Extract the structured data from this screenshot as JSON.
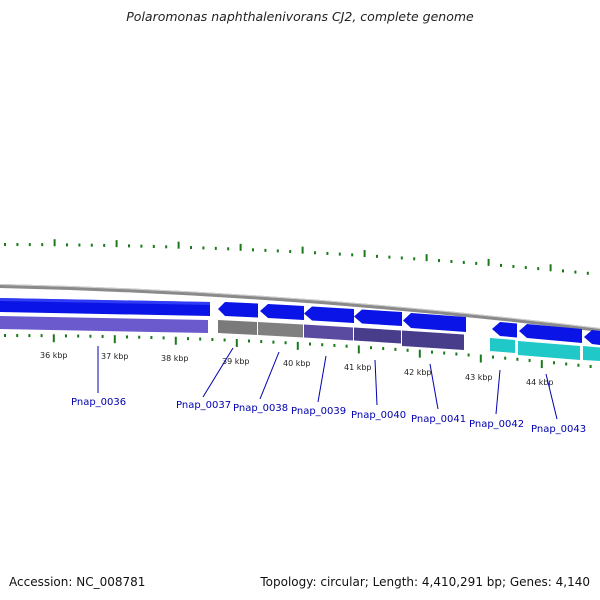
{
  "header": {
    "title": "Polaromonas naphthalenivorans CJ2, complete genome"
  },
  "footer": {
    "accession": "Accession: NC_008781",
    "topology": "Topology: circular; Length: 4,410,291 bp; Genes: 4,140"
  },
  "scale_labels": [
    "36 kbp",
    "37 kbp",
    "38 kbp",
    "39 kbp",
    "40 kbp",
    "41 kbp",
    "42 kbp",
    "43 kbp",
    "44 kbp"
  ],
  "genes": [
    {
      "id": "Pnap_0036",
      "strand": "+"
    },
    {
      "id": "Pnap_0037",
      "strand": "-"
    },
    {
      "id": "Pnap_0038",
      "strand": "-"
    },
    {
      "id": "Pnap_0039",
      "strand": "-"
    },
    {
      "id": "Pnap_0040",
      "strand": "-"
    },
    {
      "id": "Pnap_0041",
      "strand": "-"
    },
    {
      "id": "Pnap_0042",
      "strand": "-"
    },
    {
      "id": "Pnap_0043",
      "strand": "-"
    }
  ],
  "colors": {
    "gene_fill": "#0a14e6",
    "cog_purple": "#6a5acd",
    "cog_gray": "#808080",
    "cog_dark": "#483d8b",
    "cog_cyan": "#20c8c8",
    "gc_tick": "#1a7a1a",
    "backbone": "#999999",
    "label": "#0000b0"
  }
}
